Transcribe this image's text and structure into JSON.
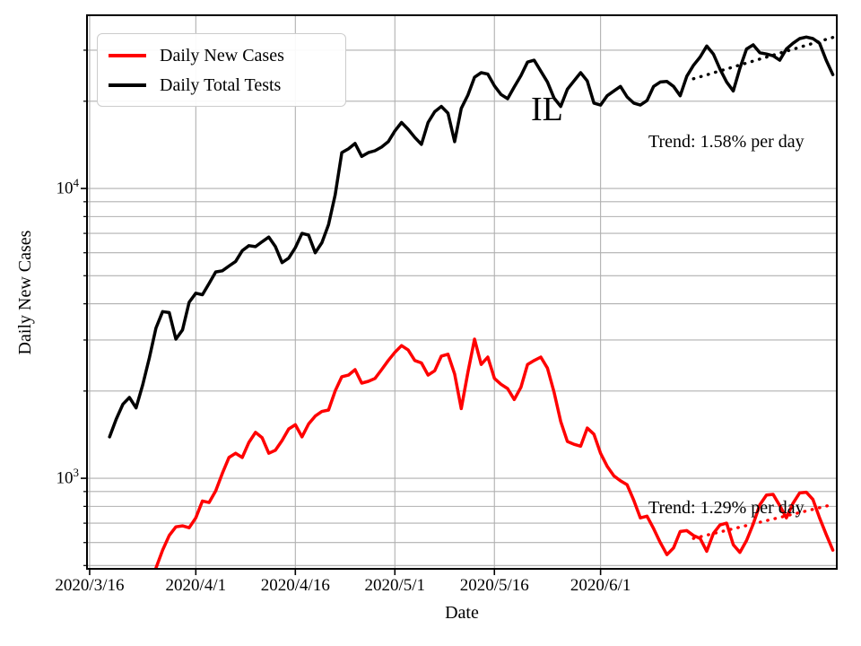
{
  "chart_data": {
    "type": "line",
    "region_label": "IL",
    "xlabel": "Date",
    "ylabel": "Daily New Cases",
    "y_scale": "log",
    "ylim": [
      487,
      39600
    ],
    "xlim_days_from_2020_03_16": [
      -0.4,
      112.6
    ],
    "grid": "both",
    "grid_color": "#b0b0b0",
    "background_color": "#ffffff",
    "legend_position": "upper-left",
    "x_ticks": [
      {
        "label": "2020/3/16",
        "date": "2020/3/16"
      },
      {
        "label": "2020/4/1",
        "date": "2020/4/1"
      },
      {
        "label": "2020/4/16",
        "date": "2020/4/16"
      },
      {
        "label": "2020/5/1",
        "date": "2020/5/1"
      },
      {
        "label": "2020/5/16",
        "date": "2020/5/16"
      },
      {
        "label": "2020/6/1",
        "date": "2020/6/1"
      }
    ],
    "y_major_ticks": [
      {
        "base": "10",
        "exp": "3",
        "value": 1000
      },
      {
        "base": "10",
        "exp": "4",
        "value": 10000
      }
    ],
    "y_minor_tick_values": [
      500,
      600,
      700,
      800,
      900,
      2000,
      3000,
      4000,
      5000,
      6000,
      7000,
      8000,
      9000,
      20000,
      30000
    ],
    "series": [
      {
        "name": "Daily New Cases",
        "color": "#ff0000",
        "points": [
          [
            "2020/3/24",
            330
          ],
          [
            "2020/3/25",
            410
          ],
          [
            "2020/3/26",
            490
          ],
          [
            "2020/3/27",
            565
          ],
          [
            "2020/3/28",
            635
          ],
          [
            "2020/3/29",
            680
          ],
          [
            "2020/3/30",
            685
          ],
          [
            "2020/3/31",
            675
          ],
          [
            "2020/4/1",
            730
          ],
          [
            "2020/4/2",
            835
          ],
          [
            "2020/4/3",
            825
          ],
          [
            "2020/4/4",
            905
          ],
          [
            "2020/4/5",
            1040
          ],
          [
            "2020/4/6",
            1180
          ],
          [
            "2020/4/7",
            1220
          ],
          [
            "2020/4/8",
            1180
          ],
          [
            "2020/4/9",
            1330
          ],
          [
            "2020/4/10",
            1440
          ],
          [
            "2020/4/11",
            1380
          ],
          [
            "2020/4/12",
            1220
          ],
          [
            "2020/4/13",
            1250
          ],
          [
            "2020/4/14",
            1350
          ],
          [
            "2020/4/15",
            1480
          ],
          [
            "2020/4/16",
            1530
          ],
          [
            "2020/4/17",
            1390
          ],
          [
            "2020/4/18",
            1540
          ],
          [
            "2020/4/19",
            1640
          ],
          [
            "2020/4/20",
            1700
          ],
          [
            "2020/4/21",
            1720
          ],
          [
            "2020/4/22",
            2000
          ],
          [
            "2020/4/23",
            2240
          ],
          [
            "2020/4/24",
            2270
          ],
          [
            "2020/4/25",
            2370
          ],
          [
            "2020/4/26",
            2130
          ],
          [
            "2020/4/27",
            2160
          ],
          [
            "2020/4/28",
            2210
          ],
          [
            "2020/4/29",
            2370
          ],
          [
            "2020/4/30",
            2550
          ],
          [
            "2020/5/1",
            2720
          ],
          [
            "2020/5/2",
            2870
          ],
          [
            "2020/5/3",
            2770
          ],
          [
            "2020/5/4",
            2550
          ],
          [
            "2020/5/5",
            2500
          ],
          [
            "2020/5/6",
            2270
          ],
          [
            "2020/5/7",
            2350
          ],
          [
            "2020/5/8",
            2640
          ],
          [
            "2020/5/9",
            2680
          ],
          [
            "2020/5/10",
            2290
          ],
          [
            "2020/5/11",
            1740
          ],
          [
            "2020/5/12",
            2320
          ],
          [
            "2020/5/13",
            3020
          ],
          [
            "2020/5/14",
            2470
          ],
          [
            "2020/5/15",
            2620
          ],
          [
            "2020/5/16",
            2210
          ],
          [
            "2020/5/17",
            2110
          ],
          [
            "2020/5/18",
            2040
          ],
          [
            "2020/5/19",
            1870
          ],
          [
            "2020/5/20",
            2060
          ],
          [
            "2020/5/21",
            2470
          ],
          [
            "2020/5/22",
            2550
          ],
          [
            "2020/5/23",
            2620
          ],
          [
            "2020/5/24",
            2400
          ],
          [
            "2020/5/25",
            1980
          ],
          [
            "2020/5/26",
            1570
          ],
          [
            "2020/5/27",
            1340
          ],
          [
            "2020/5/28",
            1310
          ],
          [
            "2020/5/29",
            1290
          ],
          [
            "2020/5/30",
            1490
          ],
          [
            "2020/5/31",
            1420
          ],
          [
            "2020/6/1",
            1220
          ],
          [
            "2020/6/2",
            1100
          ],
          [
            "2020/6/3",
            1020
          ],
          [
            "2020/6/4",
            980
          ],
          [
            "2020/6/5",
            950
          ],
          [
            "2020/6/6",
            840
          ],
          [
            "2020/6/7",
            730
          ],
          [
            "2020/6/8",
            740
          ],
          [
            "2020/6/9",
            670
          ],
          [
            "2020/6/10",
            600
          ],
          [
            "2020/6/11",
            545
          ],
          [
            "2020/6/12",
            575
          ],
          [
            "2020/6/13",
            655
          ],
          [
            "2020/6/14",
            660
          ],
          [
            "2020/6/15",
            635
          ],
          [
            "2020/6/16",
            620
          ],
          [
            "2020/6/17",
            560
          ],
          [
            "2020/6/18",
            645
          ],
          [
            "2020/6/19",
            690
          ],
          [
            "2020/6/20",
            700
          ],
          [
            "2020/6/21",
            590
          ],
          [
            "2020/6/22",
            555
          ],
          [
            "2020/6/23",
            610
          ],
          [
            "2020/6/24",
            695
          ],
          [
            "2020/6/25",
            810
          ],
          [
            "2020/6/26",
            875
          ],
          [
            "2020/6/27",
            880
          ],
          [
            "2020/6/28",
            805
          ],
          [
            "2020/6/29",
            730
          ],
          [
            "2020/6/30",
            820
          ],
          [
            "2020/7/1",
            890
          ],
          [
            "2020/7/2",
            895
          ],
          [
            "2020/7/3",
            845
          ],
          [
            "2020/7/4",
            730
          ],
          [
            "2020/7/5",
            640
          ],
          [
            "2020/7/6",
            565
          ]
        ]
      },
      {
        "name": "Daily Total Tests",
        "color": "#000000",
        "points": [
          [
            "2020/3/19",
            1390
          ],
          [
            "2020/3/20",
            1600
          ],
          [
            "2020/3/21",
            1800
          ],
          [
            "2020/3/22",
            1900
          ],
          [
            "2020/3/23",
            1750
          ],
          [
            "2020/3/24",
            2100
          ],
          [
            "2020/3/25",
            2600
          ],
          [
            "2020/3/26",
            3300
          ],
          [
            "2020/3/27",
            3760
          ],
          [
            "2020/3/28",
            3730
          ],
          [
            "2020/3/29",
            3020
          ],
          [
            "2020/3/30",
            3250
          ],
          [
            "2020/3/31",
            4050
          ],
          [
            "2020/4/1",
            4350
          ],
          [
            "2020/4/2",
            4300
          ],
          [
            "2020/4/3",
            4700
          ],
          [
            "2020/4/4",
            5150
          ],
          [
            "2020/4/5",
            5200
          ],
          [
            "2020/4/6",
            5400
          ],
          [
            "2020/4/7",
            5600
          ],
          [
            "2020/4/8",
            6100
          ],
          [
            "2020/4/9",
            6350
          ],
          [
            "2020/4/10",
            6300
          ],
          [
            "2020/4/11",
            6550
          ],
          [
            "2020/4/12",
            6800
          ],
          [
            "2020/4/13",
            6300
          ],
          [
            "2020/4/14",
            5550
          ],
          [
            "2020/4/15",
            5750
          ],
          [
            "2020/4/16",
            6250
          ],
          [
            "2020/4/17",
            7000
          ],
          [
            "2020/4/18",
            6900
          ],
          [
            "2020/4/19",
            6000
          ],
          [
            "2020/4/20",
            6500
          ],
          [
            "2020/4/21",
            7500
          ],
          [
            "2020/4/22",
            9500
          ],
          [
            "2020/4/23",
            13300
          ],
          [
            "2020/4/24",
            13700
          ],
          [
            "2020/4/25",
            14300
          ],
          [
            "2020/4/26",
            12900
          ],
          [
            "2020/4/27",
            13300
          ],
          [
            "2020/4/28",
            13500
          ],
          [
            "2020/4/29",
            13900
          ],
          [
            "2020/4/30",
            14500
          ],
          [
            "2020/5/1",
            15800
          ],
          [
            "2020/5/2",
            16900
          ],
          [
            "2020/5/3",
            16000
          ],
          [
            "2020/5/4",
            15000
          ],
          [
            "2020/5/5",
            14200
          ],
          [
            "2020/5/6",
            16900
          ],
          [
            "2020/5/7",
            18400
          ],
          [
            "2020/5/8",
            19200
          ],
          [
            "2020/5/9",
            18200
          ],
          [
            "2020/5/10",
            14500
          ],
          [
            "2020/5/11",
            18900
          ],
          [
            "2020/5/12",
            21000
          ],
          [
            "2020/5/13",
            24200
          ],
          [
            "2020/5/14",
            25100
          ],
          [
            "2020/5/15",
            24800
          ],
          [
            "2020/5/16",
            22600
          ],
          [
            "2020/5/17",
            21100
          ],
          [
            "2020/5/18",
            20400
          ],
          [
            "2020/5/19",
            22400
          ],
          [
            "2020/5/20",
            24500
          ],
          [
            "2020/5/21",
            27300
          ],
          [
            "2020/5/22",
            27700
          ],
          [
            "2020/5/23",
            25400
          ],
          [
            "2020/5/24",
            23300
          ],
          [
            "2020/5/25",
            20500
          ],
          [
            "2020/5/26",
            19200
          ],
          [
            "2020/5/27",
            22000
          ],
          [
            "2020/5/28",
            23500
          ],
          [
            "2020/5/29",
            25100
          ],
          [
            "2020/5/30",
            23500
          ],
          [
            "2020/5/31",
            19700
          ],
          [
            "2020/6/1",
            19400
          ],
          [
            "2020/6/2",
            20900
          ],
          [
            "2020/6/3",
            21700
          ],
          [
            "2020/6/4",
            22500
          ],
          [
            "2020/6/5",
            20700
          ],
          [
            "2020/6/6",
            19700
          ],
          [
            "2020/6/7",
            19400
          ],
          [
            "2020/6/8",
            20100
          ],
          [
            "2020/6/9",
            22500
          ],
          [
            "2020/6/10",
            23300
          ],
          [
            "2020/6/11",
            23400
          ],
          [
            "2020/6/12",
            22500
          ],
          [
            "2020/6/13",
            20900
          ],
          [
            "2020/6/14",
            24400
          ],
          [
            "2020/6/15",
            26600
          ],
          [
            "2020/6/16",
            28400
          ],
          [
            "2020/6/17",
            31000
          ],
          [
            "2020/6/18",
            29100
          ],
          [
            "2020/6/19",
            25800
          ],
          [
            "2020/6/20",
            23300
          ],
          [
            "2020/6/21",
            21700
          ],
          [
            "2020/6/22",
            26000
          ],
          [
            "2020/6/23",
            30300
          ],
          [
            "2020/6/24",
            31300
          ],
          [
            "2020/6/25",
            29400
          ],
          [
            "2020/6/26",
            29100
          ],
          [
            "2020/6/27",
            28700
          ],
          [
            "2020/6/28",
            27700
          ],
          [
            "2020/6/29",
            30300
          ],
          [
            "2020/6/30",
            31700
          ],
          [
            "2020/7/1",
            32900
          ],
          [
            "2020/7/2",
            33300
          ],
          [
            "2020/7/3",
            32900
          ],
          [
            "2020/7/4",
            31700
          ],
          [
            "2020/7/5",
            27700
          ],
          [
            "2020/7/6",
            24700
          ]
        ]
      }
    ],
    "trend_lines": [
      {
        "name": "tests-trend",
        "label": "Trend: 1.58% per day",
        "rate_percent_per_day": 1.58,
        "color": "#000000",
        "style": "dotted",
        "points": [
          [
            "2020/6/15",
            23900
          ],
          [
            "2020/7/6",
            33200
          ]
        ]
      },
      {
        "name": "cases-trend",
        "label": "Trend: 1.29% per day",
        "rate_percent_per_day": 1.29,
        "color": "#ff0000",
        "style": "dotted",
        "points": [
          [
            "2020/6/15",
            620
          ],
          [
            "2020/7/6",
            812
          ]
        ]
      }
    ]
  }
}
